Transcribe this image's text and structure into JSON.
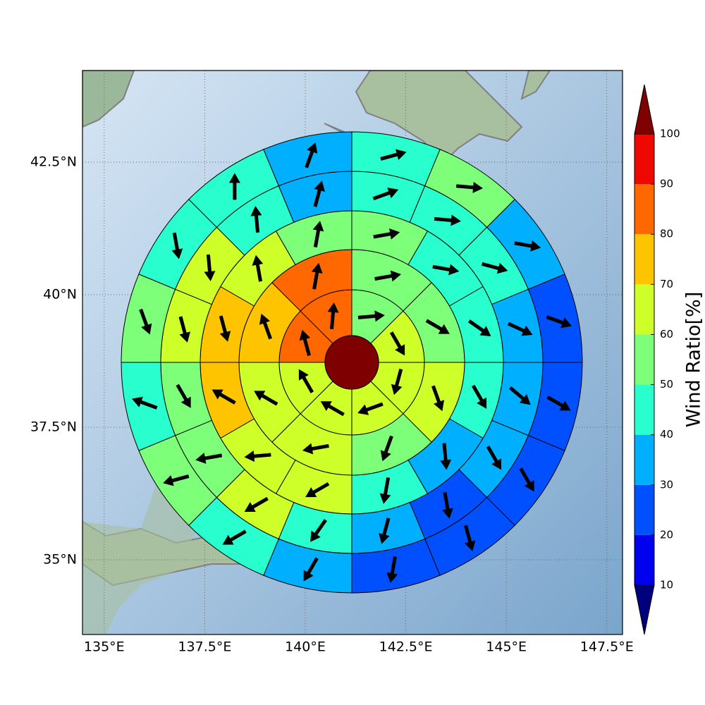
{
  "chart_data": {
    "type": "polar-grid",
    "xlim": [
      134.46,
      147.89
    ],
    "ylim": [
      33.59,
      44.23
    ],
    "xticks": [
      {
        "value": 135,
        "label": "135°E"
      },
      {
        "value": 137.5,
        "label": "137.5°E"
      },
      {
        "value": 140,
        "label": "140°E"
      },
      {
        "value": 142.5,
        "label": "142.5°E"
      },
      {
        "value": 145,
        "label": "145°E"
      },
      {
        "value": 147.5,
        "label": "147.5°E"
      }
    ],
    "yticks": [
      {
        "value": 35,
        "label": "35°N"
      },
      {
        "value": 37.5,
        "label": "37.5°N"
      },
      {
        "value": 40,
        "label": "40°N"
      },
      {
        "value": 42.5,
        "label": "42.5°N"
      }
    ],
    "grid": true,
    "colorbar": {
      "label": "Wind Ratio[%]",
      "boundaries": [
        10,
        20,
        30,
        40,
        50,
        60,
        70,
        80,
        90,
        100
      ],
      "ticks": [
        10,
        20,
        30,
        40,
        50,
        60,
        70,
        80,
        90,
        100
      ],
      "colors": [
        "#0000ee",
        "#0050ff",
        "#00b0ff",
        "#29ffce",
        "#7dff7a",
        "#ceff29",
        "#ffc400",
        "#ff6800",
        "#ee0800"
      ],
      "under_color": "#00007f",
      "over_color": "#7f0000"
    },
    "center": {
      "value": 105
    },
    "rings": [
      {
        "values": [
          55,
          65,
          65,
          65,
          65,
          65,
          85,
          85
        ],
        "directions": [
          85,
          150,
          195,
          250,
          300,
          330,
          345,
          5
        ]
      },
      {
        "values": [
          55,
          55,
          65,
          55,
          65,
          65,
          75,
          85
        ],
        "directions": [
          80,
          120,
          160,
          200,
          260,
          300,
          340,
          10
        ]
      },
      {
        "values": [
          55,
          45,
          45,
          45,
          35,
          45,
          65,
          65,
          75,
          75,
          65,
          55
        ],
        "directions": [
          80,
          100,
          125,
          150,
          175,
          190,
          240,
          265,
          300,
          165,
          350,
          10
        ]
      },
      {
        "values": [
          45,
          45,
          45,
          35,
          35,
          35,
          25,
          35,
          45,
          65,
          55,
          55,
          65,
          65,
          45,
          35
        ],
        "directions": [
          70,
          95,
          105,
          115,
          130,
          150,
          170,
          195,
          215,
          240,
          260,
          150,
          165,
          175,
          355,
          15
        ]
      },
      {
        "values": [
          45,
          55,
          35,
          25,
          25,
          25,
          25,
          25,
          35,
          45,
          55,
          45,
          55,
          45,
          45,
          35
        ],
        "directions": [
          75,
          95,
          100,
          110,
          120,
          150,
          165,
          190,
          210,
          240,
          255,
          290,
          160,
          170,
          0,
          20
        ]
      }
    ]
  }
}
